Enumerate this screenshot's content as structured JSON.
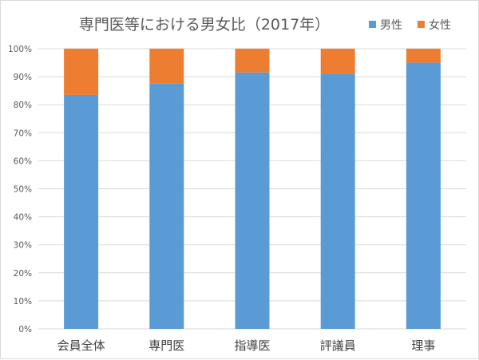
{
  "chart_data": {
    "type": "bar",
    "stacked": true,
    "title": "専門医等における男女比（2017年）",
    "categories": [
      "会員全体",
      "専門医",
      "指導医",
      "評議員",
      "理事"
    ],
    "series": [
      {
        "name": "男性",
        "color": "#5b9bd5",
        "values": [
          83.5,
          87.5,
          91.5,
          91.0,
          95.0
        ]
      },
      {
        "name": "女性",
        "color": "#ed7d31",
        "values": [
          16.5,
          12.5,
          8.5,
          9.0,
          5.0
        ]
      }
    ],
    "y_ticks": [
      "0%",
      "10%",
      "20%",
      "30%",
      "40%",
      "50%",
      "60%",
      "70%",
      "80%",
      "90%",
      "100%"
    ],
    "ylim": [
      0,
      100
    ],
    "y_unit": "%",
    "grid": true,
    "legend_position": "top-right",
    "xlabel": "",
    "ylabel": ""
  }
}
